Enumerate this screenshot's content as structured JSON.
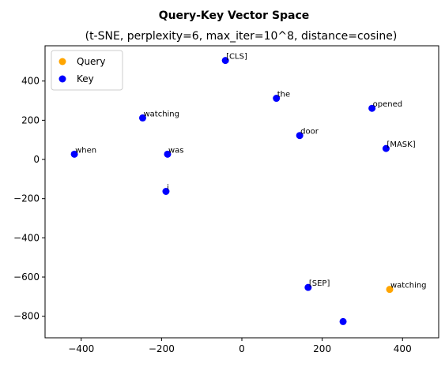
{
  "chart_data": {
    "type": "scatter",
    "title": "Query-Key Vector Space",
    "subtitle": "(t-SNE, perplexity=6, max_iter=10^8, distance=cosine)",
    "xlabel": "",
    "ylabel": "",
    "xlim": [
      -490,
      490
    ],
    "ylim": [
      -910,
      580
    ],
    "xticks": [
      -400,
      -200,
      0,
      200,
      400
    ],
    "yticks": [
      -800,
      -600,
      -400,
      -200,
      0,
      200,
      400
    ],
    "xtick_labels": [
      "−400",
      "−200",
      "0",
      "200",
      "400"
    ],
    "ytick_labels": [
      "−800",
      "−600",
      "−400",
      "−200",
      "0",
      "200",
      "400"
    ],
    "grid": false,
    "legend": {
      "placement": "top-left",
      "entries": [
        {
          "name": "Query",
          "color": "#ffa500"
        },
        {
          "name": "Key",
          "color": "#0000ff"
        }
      ]
    },
    "series": [
      {
        "name": "Query",
        "color": "#ffa500",
        "points": [
          {
            "x": 368,
            "y": -663,
            "label": "watching"
          }
        ]
      },
      {
        "name": "Key",
        "color": "#0000ff",
        "points": [
          {
            "x": -41,
            "y": 505,
            "label": "[CLS]"
          },
          {
            "x": 86,
            "y": 312,
            "label": "the"
          },
          {
            "x": 324,
            "y": 261,
            "label": "opened"
          },
          {
            "x": -247,
            "y": 212,
            "label": "watching"
          },
          {
            "x": 144,
            "y": 122,
            "label": "door"
          },
          {
            "x": 359,
            "y": 56,
            "label": "[MASK]"
          },
          {
            "x": -417,
            "y": 27,
            "label": "when"
          },
          {
            "x": -185,
            "y": 27,
            "label": "was"
          },
          {
            "x": -189,
            "y": -163,
            "label": "i"
          },
          {
            "x": 165,
            "y": -653,
            "label": "[SEP]"
          },
          {
            "x": 252,
            "y": -827,
            "label": ""
          }
        ]
      }
    ]
  }
}
